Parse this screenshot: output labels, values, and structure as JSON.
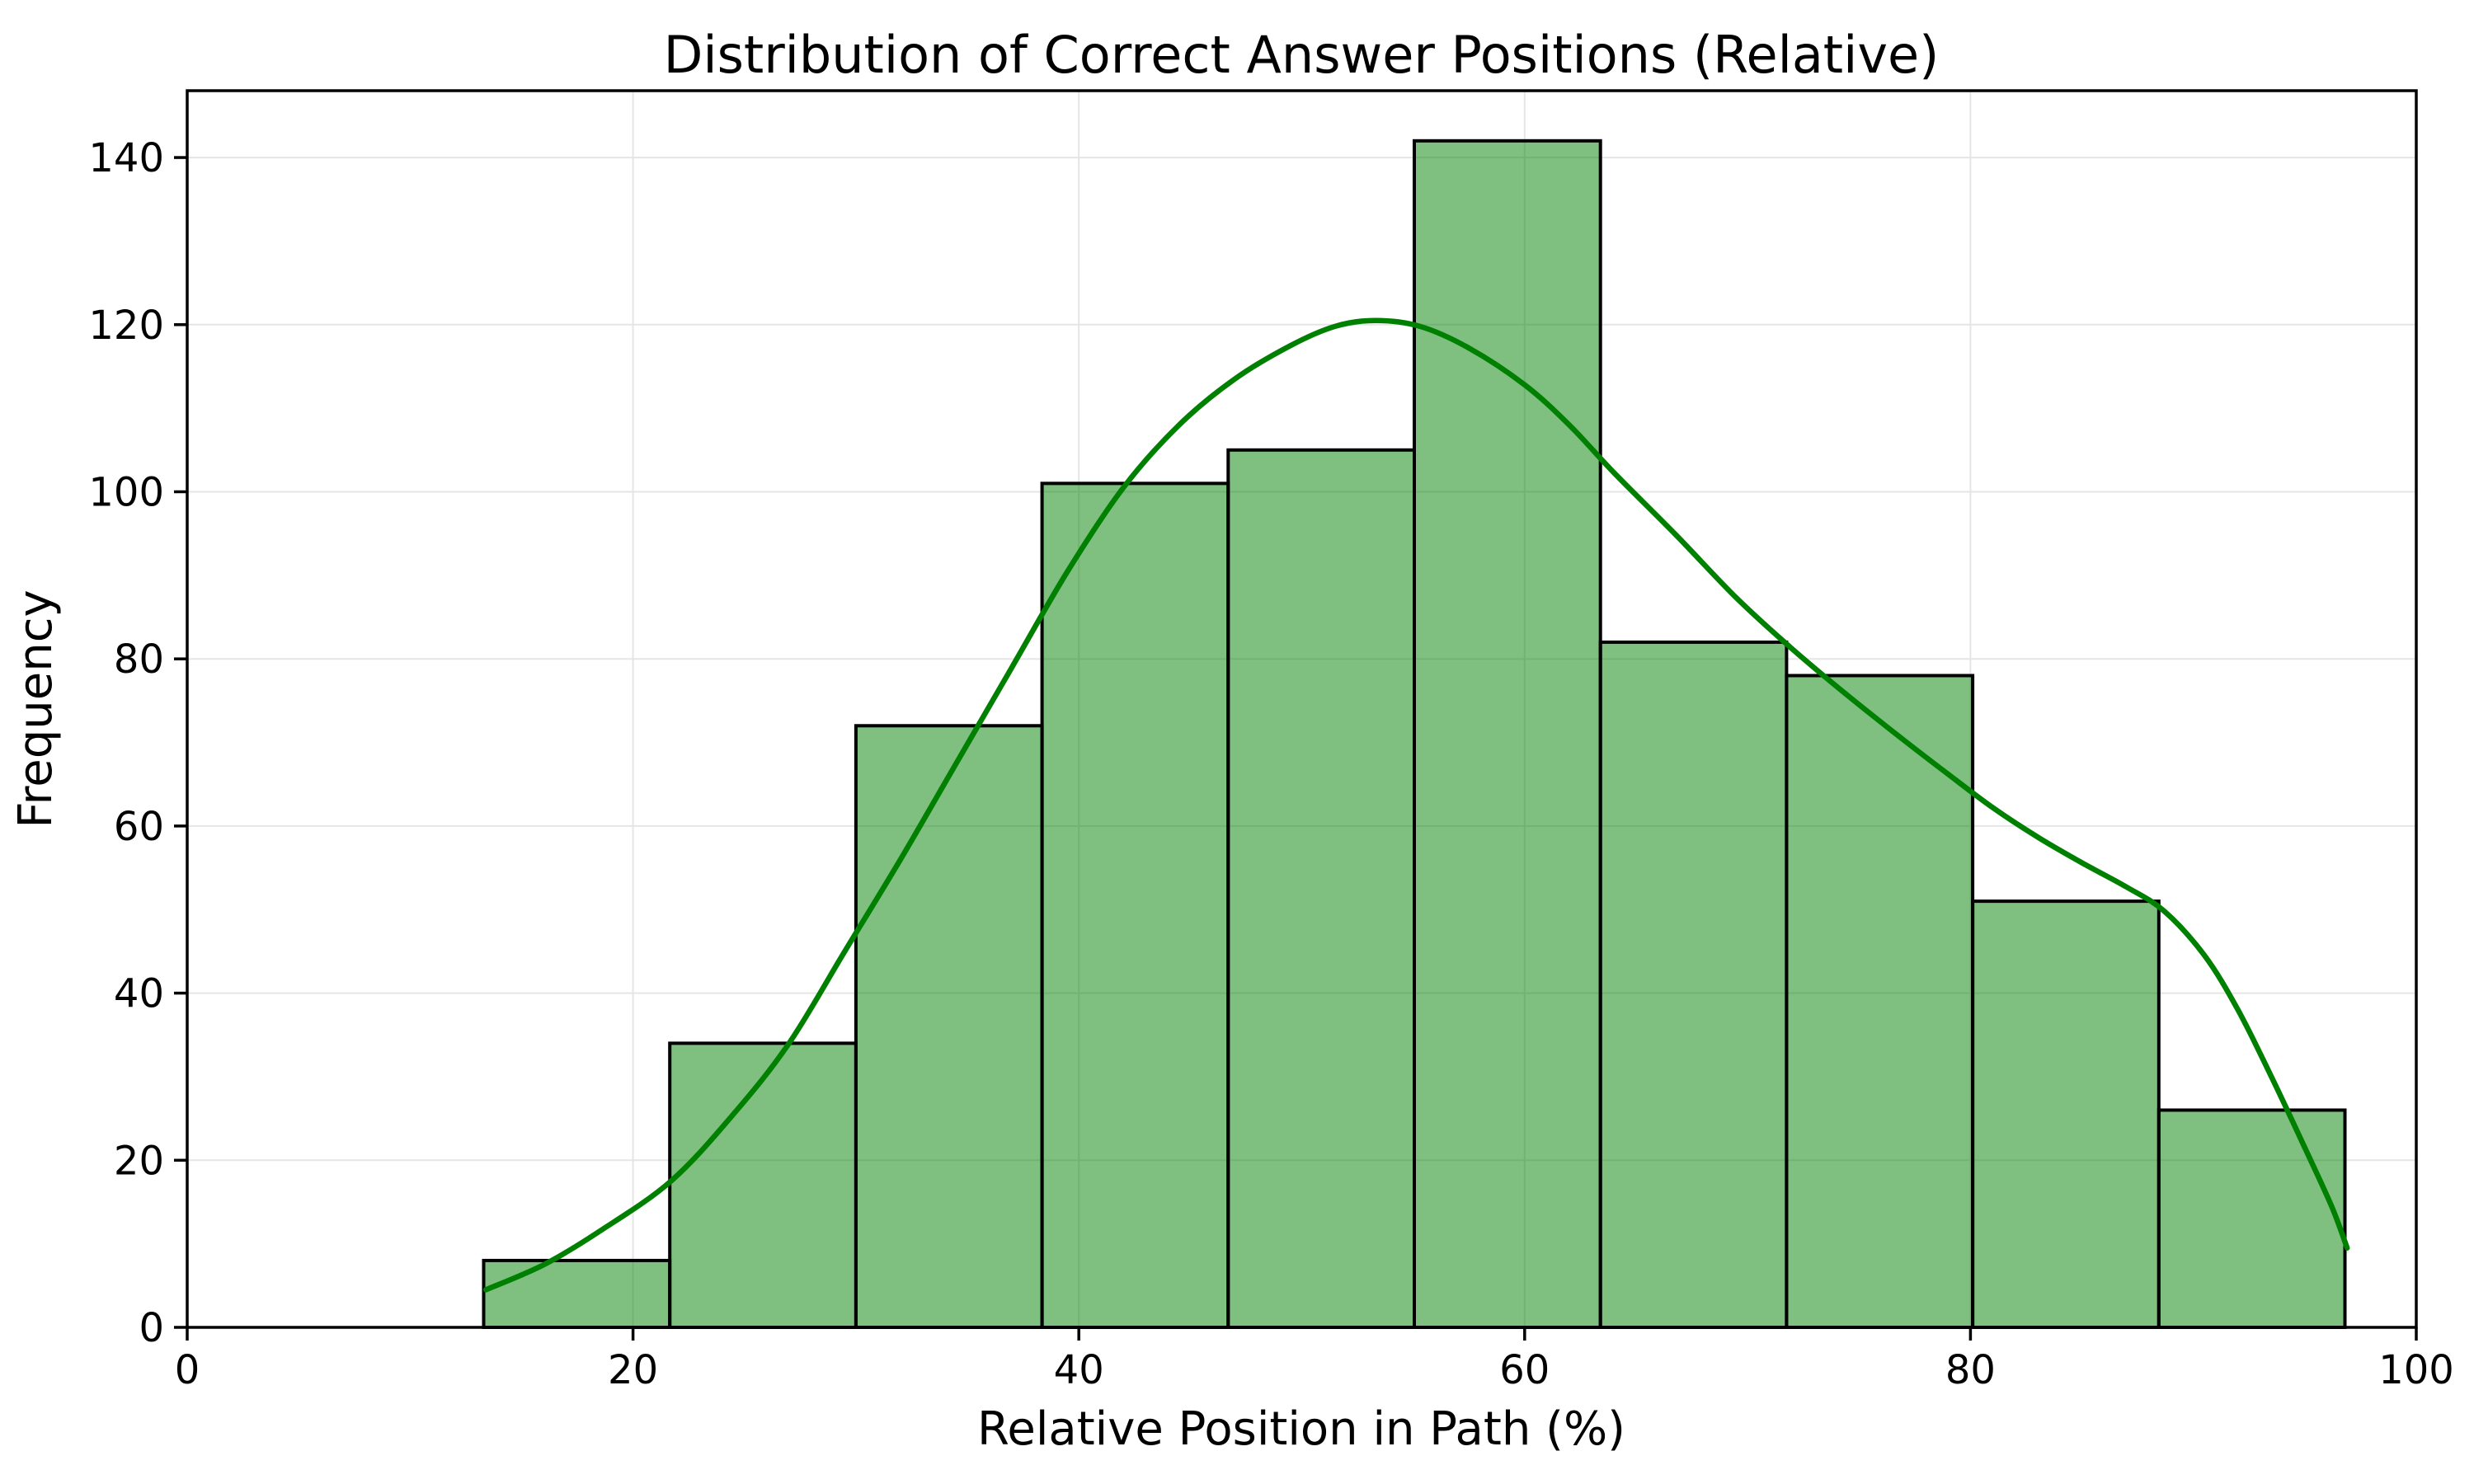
{
  "chart_data": {
    "type": "bar",
    "subtype": "histogram_with_kde",
    "title": "Distribution of Correct Answer Positions (Relative)",
    "xlabel": "Relative Position in Path (%)",
    "ylabel": "Frequency",
    "bin_edges": [
      13.3,
      21.65,
      30.0,
      38.35,
      46.7,
      55.05,
      63.4,
      71.75,
      80.1,
      88.45,
      96.8
    ],
    "frequencies": [
      8,
      34,
      72,
      101,
      105,
      142,
      82,
      78,
      51,
      26
    ],
    "kde_curve": [
      [
        13.4,
        4.5
      ],
      [
        16.0,
        7.5
      ],
      [
        18.5,
        11.5
      ],
      [
        21.7,
        17.5
      ],
      [
        24.5,
        25.5
      ],
      [
        27.0,
        34.0
      ],
      [
        29.5,
        45.0
      ],
      [
        32.0,
        56.0
      ],
      [
        34.5,
        67.5
      ],
      [
        37.0,
        79.0
      ],
      [
        39.5,
        90.5
      ],
      [
        42.0,
        100.5
      ],
      [
        44.5,
        108.0
      ],
      [
        47.0,
        113.5
      ],
      [
        49.5,
        117.5
      ],
      [
        51.5,
        119.8
      ],
      [
        53.3,
        120.5
      ],
      [
        55.3,
        119.8
      ],
      [
        57.5,
        117.2
      ],
      [
        60.0,
        112.8
      ],
      [
        62.0,
        108.0
      ],
      [
        64.0,
        102.3
      ],
      [
        66.8,
        94.8
      ],
      [
        69.5,
        87.3
      ],
      [
        72.0,
        81.2
      ],
      [
        74.5,
        75.6
      ],
      [
        77.0,
        70.3
      ],
      [
        79.0,
        66.2
      ],
      [
        81.0,
        62.2
      ],
      [
        83.0,
        58.7
      ],
      [
        85.0,
        55.6
      ],
      [
        87.0,
        52.7
      ],
      [
        88.7,
        49.8
      ],
      [
        90.5,
        44.5
      ],
      [
        92.0,
        38.0
      ],
      [
        93.5,
        30.0
      ],
      [
        95.0,
        21.5
      ],
      [
        96.2,
        14.5
      ],
      [
        96.9,
        9.5
      ]
    ],
    "xlim": [
      0,
      100
    ],
    "ylim": [
      0,
      148
    ],
    "xticks": [
      0,
      20,
      40,
      60,
      80,
      100
    ],
    "yticks": [
      0,
      20,
      40,
      60,
      80,
      100,
      120,
      140
    ],
    "grid": true,
    "legend": false,
    "colors": {
      "bar_fill": "#008000",
      "bar_fill_opacity": "0.5",
      "bar_edge": "#000000",
      "kde_line": "#008000",
      "grid_line": "#e5e5e5",
      "spine": "#000000",
      "background": "#ffffff"
    }
  }
}
